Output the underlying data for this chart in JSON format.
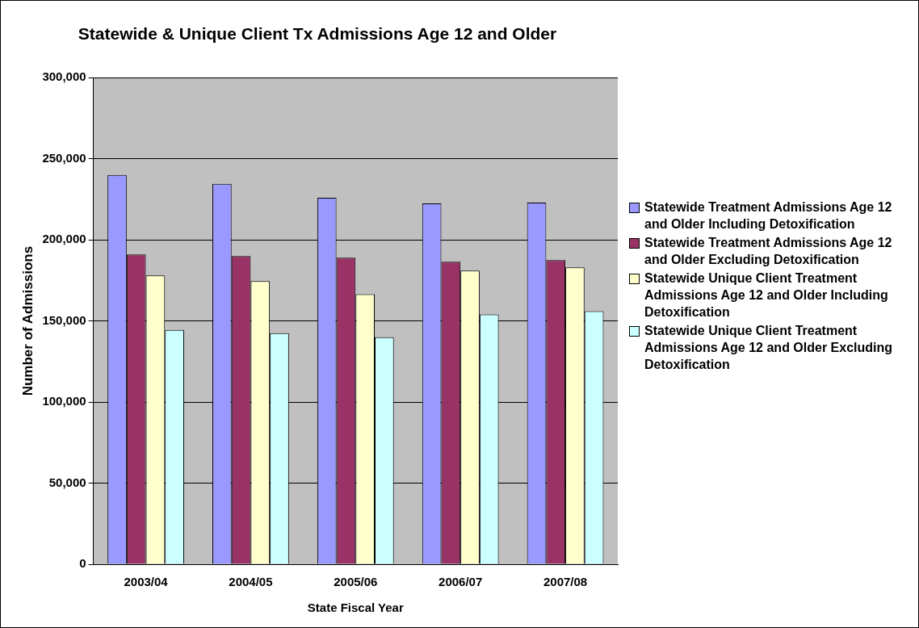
{
  "chart_data": {
    "type": "bar",
    "title": "Statewide & Unique Client Tx Admissions Age 12 and Older",
    "xlabel": "State Fiscal Year",
    "ylabel": "Number of Admissions",
    "categories": [
      "2003/04",
      "2004/05",
      "2005/06",
      "2006/07",
      "2007/08"
    ],
    "series": [
      {
        "name": "Statewide Treatment Admissions Age 12 and Older Including Detoxification",
        "color": "#9999ff",
        "values": [
          240000,
          234500,
          226000,
          222500,
          223000
        ]
      },
      {
        "name": "Statewide Treatment Admissions Age 12 and Older Excluding Detoxification",
        "color": "#993366",
        "values": [
          191000,
          190000,
          189000,
          186500,
          187500
        ]
      },
      {
        "name": "Statewide Unique Client Treatment Admissions Age 12 and Older Including Detoxification",
        "color": "#ffffcc",
        "values": [
          178000,
          174500,
          166500,
          181000,
          183000
        ]
      },
      {
        "name": "Statewide Unique Client Treatment Admissions Age 12 and Older Excluding Detoxification",
        "color": "#ccffff",
        "values": [
          144500,
          142500,
          140000,
          154000,
          156000
        ]
      }
    ],
    "ylim": [
      0,
      300000
    ],
    "yticks": [
      0,
      {
        "value": 50000,
        "label": "50,000"
      },
      {
        "value": 100000,
        "label": "100,000"
      },
      {
        "value": 150000,
        "label": "150,000"
      },
      {
        "value": 200000,
        "label": "200,000"
      },
      {
        "value": 250000,
        "label": "250,000"
      },
      {
        "value": 300000,
        "label": "300,000"
      }
    ],
    "grid": "y",
    "legend": "right"
  }
}
